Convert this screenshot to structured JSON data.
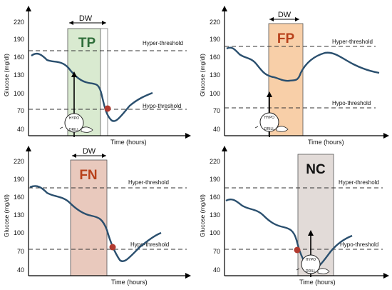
{
  "colors": {
    "curve": "#2a4f6e",
    "tp_fill": "#d9ead0",
    "tp_text": "#2f6e3a",
    "fp_fill": "#f8cfa8",
    "fp_text": "#b8401a",
    "fn_fill": "#e9c9bd",
    "fn_text": "#b8401a",
    "nc_fill": "#e2dbd8",
    "nc_text": "#111111",
    "marker": "#b23a2f"
  },
  "axis": {
    "y_label": "Glucose (mg/dl)",
    "x_label": "Time (hours)",
    "y_ticks": [
      "220",
      "190",
      "160",
      "130",
      "100",
      "70",
      "40"
    ]
  },
  "thresholds": {
    "hyper_label": "Hyper-threshold",
    "hypo_label": "Hypo-threshold"
  },
  "dw_label": "DW",
  "icon_text": {
    "top": "HYPO",
    "bottom": "DRILL"
  },
  "panels": [
    {
      "id": "tp",
      "label": "TP",
      "show_dw": true,
      "alarm_inside_box": true
    },
    {
      "id": "fp",
      "label": "FP",
      "show_dw": true,
      "alarm_inside_box": true
    },
    {
      "id": "fn",
      "label": "FN",
      "show_dw": true,
      "alarm_inside_box": false
    },
    {
      "id": "nc",
      "label": "NC",
      "show_dw": false,
      "alarm_inside_box": true
    }
  ]
}
